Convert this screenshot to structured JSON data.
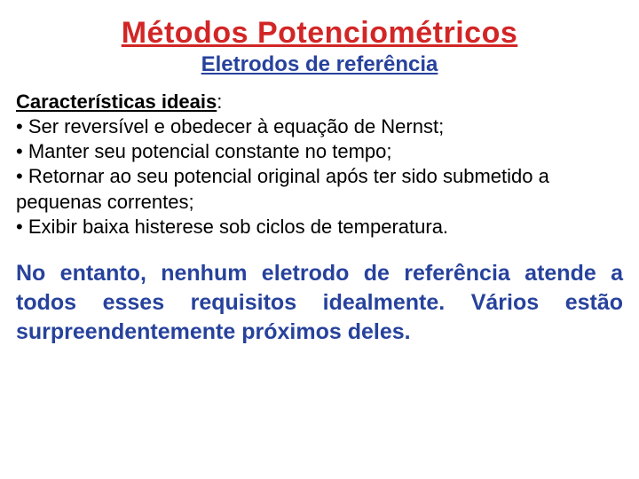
{
  "colors": {
    "title": "#d22626",
    "subtitle": "#27429c",
    "heading": "#000000",
    "body": "#000000",
    "conclusion": "#27429c",
    "background": "#ffffff"
  },
  "title": "Métodos Potenciométricos",
  "subtitle": "Eletrodos de referência",
  "section_heading": "Características ideais",
  "colon": ":",
  "bullets": [
    "• Ser reversível e obedecer à equação de Nernst;",
    "• Manter seu potencial constante no tempo;",
    "• Retornar ao seu potencial original após ter sido submetido a pequenas correntes;",
    "• Exibir baixa histerese sob ciclos de temperatura."
  ],
  "conclusion": "No entanto, nenhum eletrodo de referência atende a todos esses requisitos idealmente. Vários estão surpreendentemente próximos deles."
}
